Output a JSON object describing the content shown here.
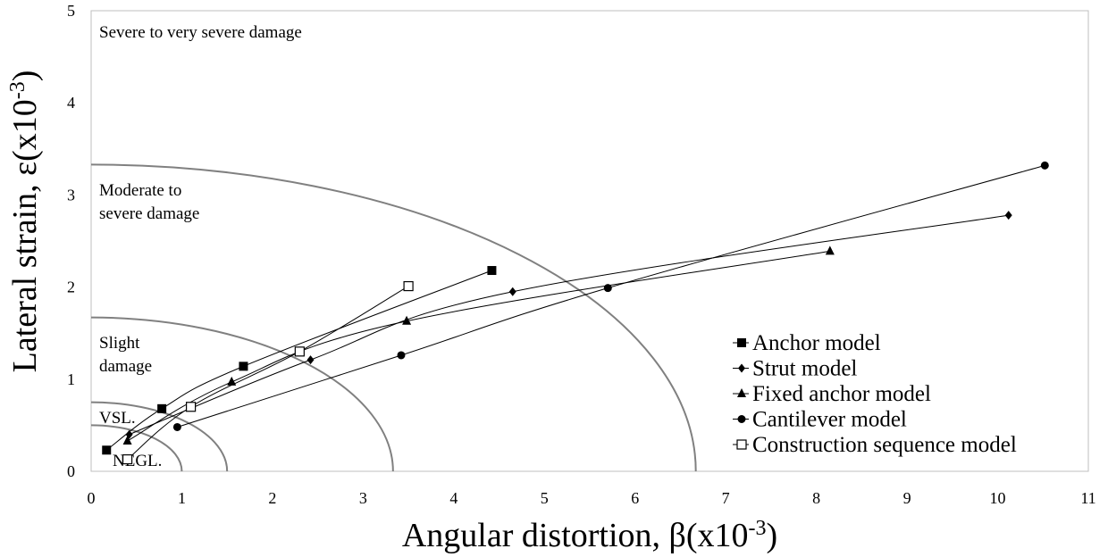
{
  "chart_data": {
    "type": "line",
    "xlabel": "Angular distortion, β(x10",
    "xlabel_sup": "-3",
    "xlabel_end": ")",
    "ylabel": "Lateral strain, ε(x10",
    "ylabel_sup": "-3",
    "ylabel_end": ")",
    "xlim": [
      0,
      11
    ],
    "ylim": [
      0,
      5
    ],
    "x_ticks": [
      "0",
      "1",
      "2",
      "3",
      "4",
      "5",
      "6",
      "7",
      "8",
      "9",
      "10",
      "11"
    ],
    "y_ticks": [
      "0",
      "1",
      "2",
      "3",
      "4",
      "5"
    ],
    "grid": false,
    "legend_position": "bottom-right",
    "zones": [
      {
        "label_lines": [
          "Severe to very severe damage"
        ]
      },
      {
        "label_lines": [
          "Moderate to",
          "severe damage"
        ],
        "boundary": {
          "x_intercept": 6.67,
          "y_intercept": 3.33
        }
      },
      {
        "label_lines": [
          "Slight",
          "damage"
        ],
        "boundary": {
          "x_intercept": 3.33,
          "y_intercept": 1.67
        }
      },
      {
        "label_lines": [
          "VSL."
        ],
        "boundary": {
          "x_intercept": 1.5,
          "y_intercept": 0.75
        }
      },
      {
        "label_lines": [
          "NEGL."
        ],
        "boundary": {
          "x_intercept": 1.0,
          "y_intercept": 0.5
        }
      }
    ],
    "boundary_color": "#808080",
    "series": [
      {
        "name": "Anchor model",
        "marker": "square-filled",
        "x": [
          0.17,
          0.78,
          1.68,
          4.42
        ],
        "y": [
          0.23,
          0.68,
          1.14,
          2.18
        ]
      },
      {
        "name": "Strut model",
        "marker": "diamond-filled",
        "x": [
          0.42,
          2.42,
          4.65,
          10.12
        ],
        "y": [
          0.4,
          1.21,
          1.95,
          2.78
        ]
      },
      {
        "name": "Fixed anchor model",
        "marker": "triangle-filled",
        "x": [
          0.4,
          1.55,
          3.48,
          8.15
        ],
        "y": [
          0.33,
          0.97,
          1.63,
          2.39
        ]
      },
      {
        "name": "Cantilever model",
        "marker": "circle-filled",
        "x": [
          0.95,
          3.42,
          5.7,
          10.52
        ],
        "y": [
          0.48,
          1.26,
          1.99,
          3.32
        ]
      },
      {
        "name": "Construction sequence model",
        "marker": "square-open",
        "x": [
          0.4,
          1.1,
          2.3,
          3.5
        ],
        "y": [
          0.13,
          0.7,
          1.3,
          2.01
        ]
      }
    ]
  }
}
